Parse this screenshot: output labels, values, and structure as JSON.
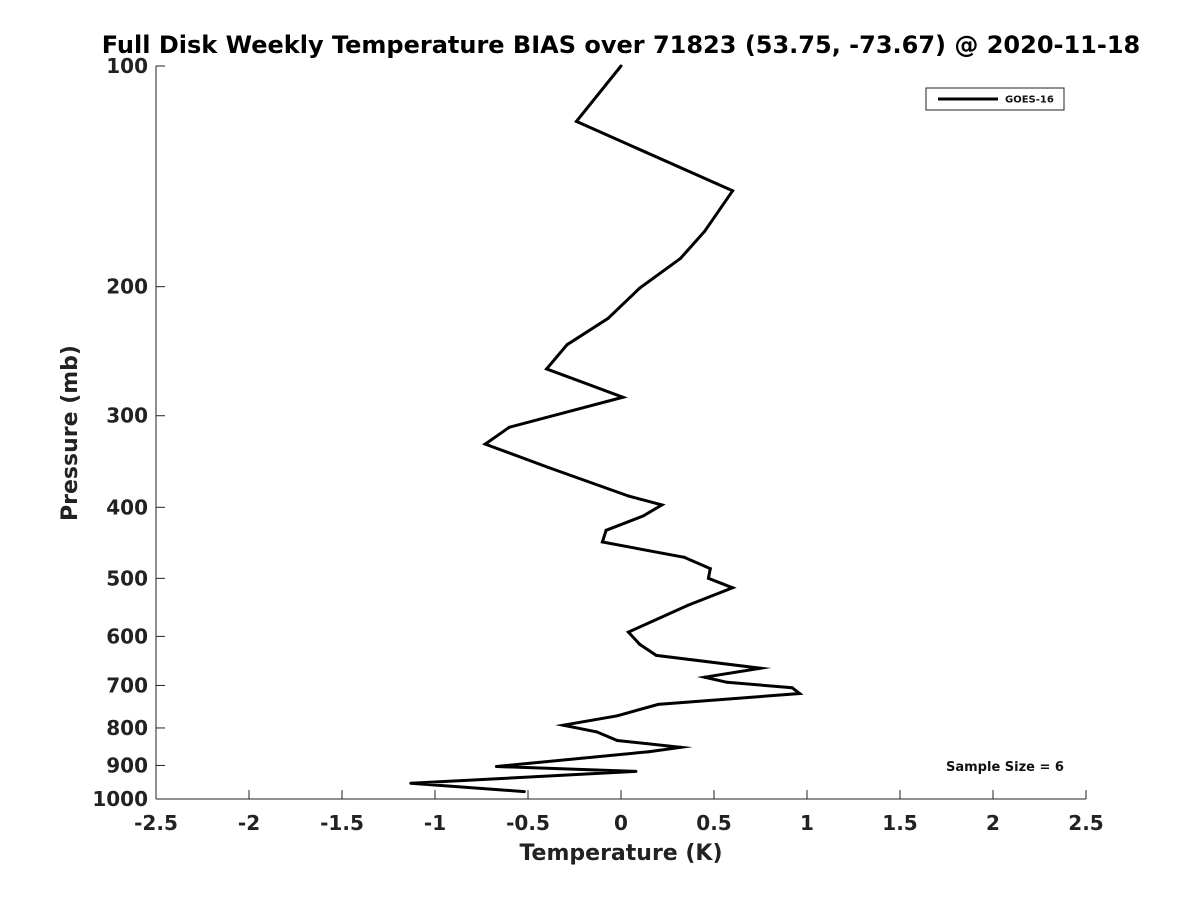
{
  "chart_data": {
    "type": "line",
    "title": "Full Disk Weekly Temperature BIAS over 71823 (53.75, -73.67) @ 2020-11-18",
    "xlabel": "Temperature (K)",
    "ylabel": "Pressure (mb)",
    "xlim": [
      -2.5,
      2.5
    ],
    "ylim": [
      100,
      1000
    ],
    "y_scale": "log",
    "y_reversed": true,
    "x_ticks": [
      "-2.5",
      "-2",
      "-1.5",
      "-1",
      "-0.5",
      "0",
      "0.5",
      "1",
      "1.5",
      "2",
      "2.5"
    ],
    "y_ticks": [
      "100",
      "200",
      "300",
      "400",
      "500",
      "600",
      "700",
      "800",
      "900",
      "1000"
    ],
    "grid": false,
    "legend_position": "top-right",
    "series": [
      {
        "name": "GOES-16",
        "color": "#000000",
        "points": [
          {
            "x": 0.0,
            "y": 100
          },
          {
            "x": -0.24,
            "y": 119
          },
          {
            "x": 0.6,
            "y": 148
          },
          {
            "x": 0.45,
            "y": 168
          },
          {
            "x": 0.32,
            "y": 183
          },
          {
            "x": 0.1,
            "y": 201
          },
          {
            "x": -0.07,
            "y": 221
          },
          {
            "x": -0.29,
            "y": 240
          },
          {
            "x": -0.4,
            "y": 259
          },
          {
            "x": 0.01,
            "y": 283
          },
          {
            "x": -0.6,
            "y": 311
          },
          {
            "x": -0.73,
            "y": 328
          },
          {
            "x": -0.39,
            "y": 353
          },
          {
            "x": 0.04,
            "y": 386
          },
          {
            "x": 0.22,
            "y": 397
          },
          {
            "x": 0.12,
            "y": 411
          },
          {
            "x": -0.08,
            "y": 430
          },
          {
            "x": -0.1,
            "y": 446
          },
          {
            "x": 0.34,
            "y": 468
          },
          {
            "x": 0.48,
            "y": 485
          },
          {
            "x": 0.47,
            "y": 500
          },
          {
            "x": 0.6,
            "y": 515
          },
          {
            "x": 0.36,
            "y": 544
          },
          {
            "x": 0.04,
            "y": 592
          },
          {
            "x": 0.1,
            "y": 615
          },
          {
            "x": 0.19,
            "y": 637
          },
          {
            "x": 0.75,
            "y": 663
          },
          {
            "x": 0.45,
            "y": 682
          },
          {
            "x": 0.57,
            "y": 693
          },
          {
            "x": 0.92,
            "y": 705
          },
          {
            "x": 0.96,
            "y": 718
          },
          {
            "x": 0.2,
            "y": 743
          },
          {
            "x": -0.02,
            "y": 770
          },
          {
            "x": -0.31,
            "y": 793
          },
          {
            "x": -0.13,
            "y": 810
          },
          {
            "x": -0.02,
            "y": 832
          },
          {
            "x": 0.32,
            "y": 850
          },
          {
            "x": 0.15,
            "y": 862
          },
          {
            "x": -0.67,
            "y": 903
          },
          {
            "x": 0.08,
            "y": 917
          },
          {
            "x": -1.13,
            "y": 952
          },
          {
            "x": -0.52,
            "y": 977
          }
        ]
      }
    ],
    "annotations": [
      "Sample Size = 6"
    ]
  }
}
